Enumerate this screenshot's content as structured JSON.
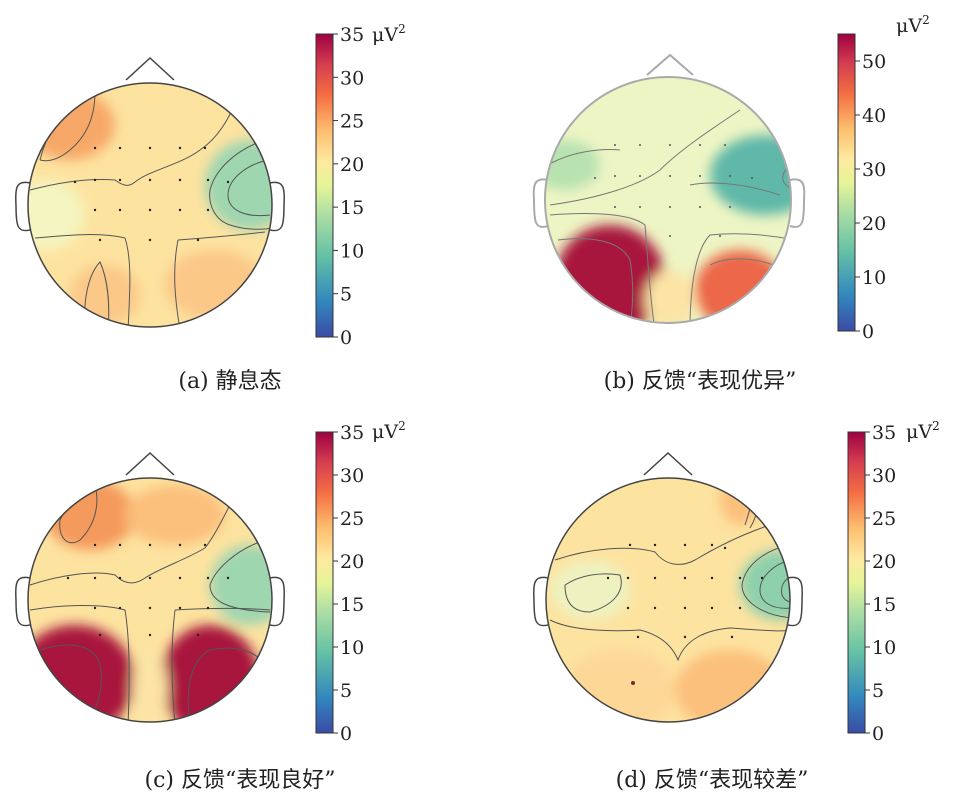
{
  "unit": "μV",
  "unit_exponent": "2",
  "colorscale": [
    "#3b4ba8",
    "#3288bd",
    "#66c2a5",
    "#abdda4",
    "#e6f598",
    "#fee08b",
    "#fdae61",
    "#f46d43",
    "#d53e4f",
    "#9e0142"
  ],
  "panels": [
    {
      "caption": "(a) 静息态",
      "scale_max": 35,
      "ticks": [
        "0",
        "5",
        "10",
        "15",
        "20",
        "25",
        "30",
        "35"
      ],
      "tick_values": [
        0,
        5,
        10,
        15,
        20,
        25,
        30,
        35
      ]
    },
    {
      "caption": "(b) 反馈“表现优异”",
      "scale_max": 55,
      "ticks": [
        "0",
        "10",
        "20",
        "30",
        "40",
        "50"
      ],
      "tick_values": [
        0,
        10,
        20,
        30,
        40,
        50
      ]
    },
    {
      "caption": "(c) 反馈“表现良好”",
      "scale_max": 35,
      "ticks": [
        "0",
        "5",
        "10",
        "15",
        "20",
        "25",
        "30",
        "35"
      ],
      "tick_values": [
        0,
        5,
        10,
        15,
        20,
        25,
        30,
        35
      ]
    },
    {
      "caption": "(d) 反馈“表现较差”",
      "scale_max": 35,
      "ticks": [
        "0",
        "5",
        "10",
        "15",
        "20",
        "25",
        "30",
        "35"
      ],
      "tick_values": [
        0,
        5,
        10,
        15,
        20,
        25,
        30,
        35
      ]
    }
  ]
}
